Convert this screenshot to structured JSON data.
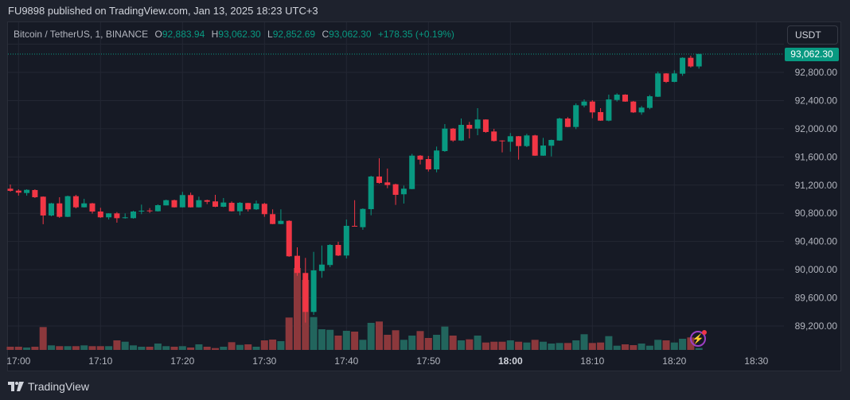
{
  "header": {
    "published": "FU9898 published on TradingView.com, Jan 13, 2025 18:23 UTC+3"
  },
  "legend": {
    "symbol": "Bitcoin / TetherUS, 1, BINANCE",
    "o_label": "O",
    "o": "92,883.94",
    "h_label": "H",
    "h": "93,062.30",
    "l_label": "L",
    "l": "92,852.69",
    "c_label": "C",
    "c": "93,062.30",
    "change": "+178.35 (+0.19%)"
  },
  "currency_button": "USDT",
  "current_price": "93,062.30",
  "footer": {
    "brand": "TradingView"
  },
  "colors": {
    "up": "#089981",
    "down": "#f23645",
    "vol_up": "#22655d",
    "vol_down": "#8c383c",
    "grid": "#232733"
  },
  "chart_data": {
    "type": "candlestick",
    "interval": "1m",
    "first_candle_time": "16:59",
    "price_axis": [
      "92,800.00",
      "92,400.00",
      "92,000.00",
      "91,600.00",
      "91,200.00",
      "90,800.00",
      "90,400.00",
      "90,000.00",
      "89,600.00",
      "89,200.00"
    ],
    "time_axis": [
      "17:00",
      "17:10",
      "17:20",
      "17:30",
      "17:40",
      "17:50",
      "18:00",
      "18:10",
      "18:20",
      "18:30"
    ],
    "time_axis_bold": [
      "18:00"
    ],
    "ohlc": [
      [
        91149,
        91209,
        91107,
        91119
      ],
      [
        91122,
        91141,
        91051,
        91093
      ],
      [
        91088,
        91141,
        91051,
        91133
      ],
      [
        91130,
        91141,
        91017,
        91028
      ],
      [
        91036,
        91040,
        90645,
        90769
      ],
      [
        90769,
        90948,
        90757,
        90941
      ],
      [
        90941,
        91028,
        90735,
        90750
      ],
      [
        90750,
        91051,
        90746,
        91043
      ],
      [
        91043,
        91062,
        90870,
        90885
      ],
      [
        90885,
        91006,
        90882,
        90941
      ],
      [
        90941,
        90948,
        90795,
        90825
      ],
      [
        90825,
        90878,
        90735,
        90743
      ],
      [
        90743,
        90802,
        90712,
        90799
      ],
      [
        90799,
        90817,
        90667,
        90731
      ],
      [
        90731,
        90799,
        90724,
        90743
      ],
      [
        90731,
        90837,
        90724,
        90825
      ],
      [
        90825,
        90923,
        90788,
        90837
      ],
      [
        90840,
        90874,
        90806,
        90833
      ],
      [
        90829,
        90927,
        90825,
        90915
      ],
      [
        90912,
        90994,
        90912,
        90986
      ],
      [
        90986,
        90994,
        90882,
        90885
      ],
      [
        90885,
        91104,
        90882,
        91059
      ],
      [
        91059,
        91093,
        90882,
        90885
      ],
      [
        90885,
        91036,
        90882,
        90986
      ],
      [
        90986,
        90994,
        90930,
        90964
      ],
      [
        90969,
        91062,
        90887,
        90893
      ],
      [
        90893,
        91017,
        90887,
        90953
      ],
      [
        90949,
        90969,
        90825,
        90829
      ],
      [
        90829,
        90960,
        90772,
        90949
      ],
      [
        90946,
        90949,
        90825,
        90856
      ],
      [
        90856,
        90980,
        90848,
        90938
      ],
      [
        90935,
        90949,
        90750,
        90788
      ],
      [
        90788,
        90856,
        90645,
        90648
      ],
      [
        90648,
        90856,
        90645,
        90693
      ],
      [
        90693,
        90701,
        90182,
        90190
      ],
      [
        90197,
        90317,
        89914,
        89953
      ],
      [
        89953,
        90167,
        89249,
        89400
      ],
      [
        89400,
        90253,
        89358,
        89990
      ],
      [
        89982,
        90343,
        89885,
        90072
      ],
      [
        90066,
        90362,
        90035,
        90351
      ],
      [
        90351,
        90396,
        90193,
        90201
      ],
      [
        90201,
        90712,
        90159,
        90622
      ],
      [
        90622,
        90986,
        90611,
        90614
      ],
      [
        90603,
        90870,
        90566,
        90862
      ],
      [
        90859,
        91333,
        90772,
        91322
      ],
      [
        91322,
        91581,
        91220,
        91231
      ],
      [
        91239,
        91435,
        91156,
        91201
      ],
      [
        91212,
        91220,
        90919,
        91062
      ],
      [
        91070,
        91194,
        90938,
        91149
      ],
      [
        91144,
        91643,
        91141,
        91618
      ],
      [
        91618,
        91627,
        91494,
        91562
      ],
      [
        91570,
        91615,
        91393,
        91423
      ],
      [
        91423,
        91747,
        91382,
        91691
      ],
      [
        91683,
        92066,
        91672,
        92002
      ],
      [
        92002,
        92010,
        91815,
        91833
      ],
      [
        91833,
        92145,
        91826,
        92055
      ],
      [
        92055,
        92097,
        91863,
        92002
      ],
      [
        92002,
        92292,
        91908,
        92131
      ],
      [
        92131,
        92134,
        91942,
        91954
      ],
      [
        91961,
        91999,
        91818,
        91826
      ],
      [
        91833,
        91837,
        91664,
        91826
      ],
      [
        91815,
        91939,
        91675,
        91894
      ],
      [
        91894,
        91897,
        91562,
        91754
      ],
      [
        91754,
        91928,
        91739,
        91905
      ],
      [
        91905,
        91914,
        91615,
        91618
      ],
      [
        91618,
        91871,
        91615,
        91762
      ],
      [
        91759,
        91846,
        91607,
        91841
      ],
      [
        91833,
        92157,
        91829,
        92145
      ],
      [
        92145,
        92165,
        92021,
        92025
      ],
      [
        92025,
        92360,
        91995,
        92334
      ],
      [
        92330,
        92416,
        92303,
        92386
      ],
      [
        92386,
        92405,
        92149,
        92232
      ],
      [
        92236,
        92292,
        92112,
        92115
      ],
      [
        92115,
        92484,
        92106,
        92416
      ],
      [
        92408,
        92503,
        92386,
        92484
      ],
      [
        92484,
        92490,
        92382,
        92386
      ],
      [
        92386,
        92394,
        92224,
        92232
      ],
      [
        92232,
        92323,
        92199,
        92300
      ],
      [
        92296,
        92480,
        92277,
        92461
      ],
      [
        92454,
        92811,
        92450,
        92785
      ],
      [
        92785,
        92789,
        92650,
        92665
      ],
      [
        92665,
        92830,
        92659,
        92785
      ],
      [
        92781,
        93014,
        92751,
        93007
      ],
      [
        93007,
        93037,
        92868,
        92884
      ],
      [
        92883.94,
        93062.3,
        92852.69,
        93062.3
      ]
    ],
    "volume_relative": [
      4,
      4,
      3,
      4,
      28.7,
      5.7,
      4.7,
      4.7,
      4.7,
      5.7,
      4.7,
      4.7,
      4.7,
      12,
      10.3,
      5.7,
      4,
      4,
      8,
      4.7,
      4,
      4.7,
      3,
      7,
      4,
      2.3,
      4,
      9.7,
      6.3,
      7,
      4,
      12,
      13,
      11,
      40.7,
      103,
      88,
      41.3,
      26,
      25.3,
      18,
      24,
      23,
      12.7,
      34,
      35.7,
      19,
      24.7,
      12.7,
      18,
      23.7,
      15,
      19,
      29.3,
      18,
      12,
      13.3,
      18,
      9.3,
      10.3,
      10.3,
      12,
      10.3,
      9.3,
      12.7,
      10.3,
      8,
      8.7,
      8.7,
      12,
      19.7,
      8.7,
      9.3,
      17.3,
      5.3,
      7,
      6,
      8,
      5.3,
      12.7,
      12,
      9.3,
      14,
      15.7,
      2.3
    ]
  }
}
